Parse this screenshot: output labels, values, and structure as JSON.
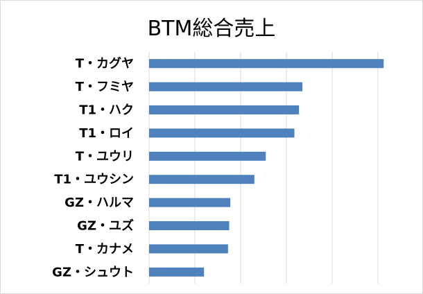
{
  "chart_data": {
    "type": "bar",
    "orientation": "horizontal",
    "title": "BTM総合売上",
    "xlabel": "",
    "ylabel": "",
    "categories": [
      "T・カグヤ",
      "T・フミヤ",
      "T1・ハク",
      "T1・ロイ",
      "T・ユウリ",
      "T1・ユウシン",
      "GZ・ハルマ",
      "GZ・ユズ",
      "T・カナメ",
      "GZ・シュウト"
    ],
    "values": [
      10.25,
      6.7,
      6.55,
      6.35,
      5.1,
      4.6,
      3.55,
      3.5,
      3.45,
      2.4
    ],
    "xlim": [
      0,
      10
    ],
    "grid": true,
    "bar_color": "#4F81BD",
    "gridline_color": "#D9D9D9"
  }
}
